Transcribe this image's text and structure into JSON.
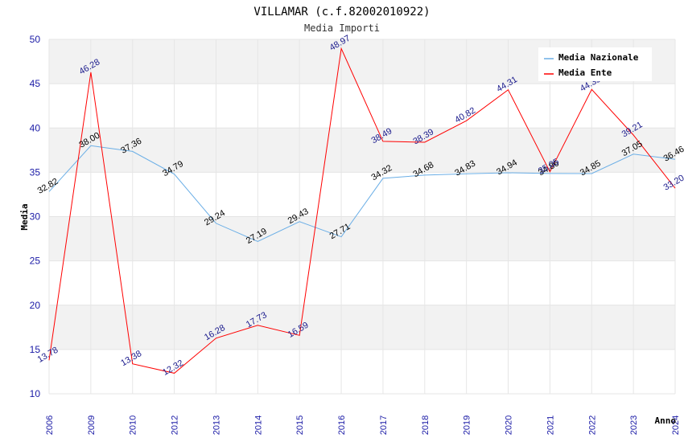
{
  "chart_data": {
    "type": "line",
    "title": "VILLAMAR (c.f.82002010922)",
    "subtitle": "Media Importi",
    "xlabel": "Anno",
    "ylabel": "Media",
    "ylim": [
      10,
      50
    ],
    "yticks": [
      10,
      15,
      20,
      25,
      30,
      35,
      40,
      45,
      50
    ],
    "categories": [
      "2006",
      "2009",
      "2010",
      "2012",
      "2013",
      "2014",
      "2015",
      "2016",
      "2017",
      "2018",
      "2019",
      "2020",
      "2021",
      "2022",
      "2023",
      "2024"
    ],
    "legend_position": "top-right",
    "grid": true,
    "series": [
      {
        "name": "Media Nazionale",
        "color": "#6aaee6",
        "label_color": "#000000",
        "values": [
          32.82,
          38.0,
          37.36,
          34.79,
          29.24,
          27.19,
          29.43,
          27.71,
          34.32,
          34.68,
          34.83,
          34.94,
          34.86,
          34.85,
          37.05,
          36.46
        ]
      },
      {
        "name": "Media Ente",
        "color": "#ff0000",
        "label_color": "#1a1a8c",
        "values": [
          13.78,
          46.28,
          13.38,
          12.32,
          16.28,
          17.73,
          16.59,
          48.97,
          38.49,
          38.39,
          40.82,
          44.31,
          35.05,
          44.35,
          39.21,
          33.2
        ]
      }
    ]
  }
}
